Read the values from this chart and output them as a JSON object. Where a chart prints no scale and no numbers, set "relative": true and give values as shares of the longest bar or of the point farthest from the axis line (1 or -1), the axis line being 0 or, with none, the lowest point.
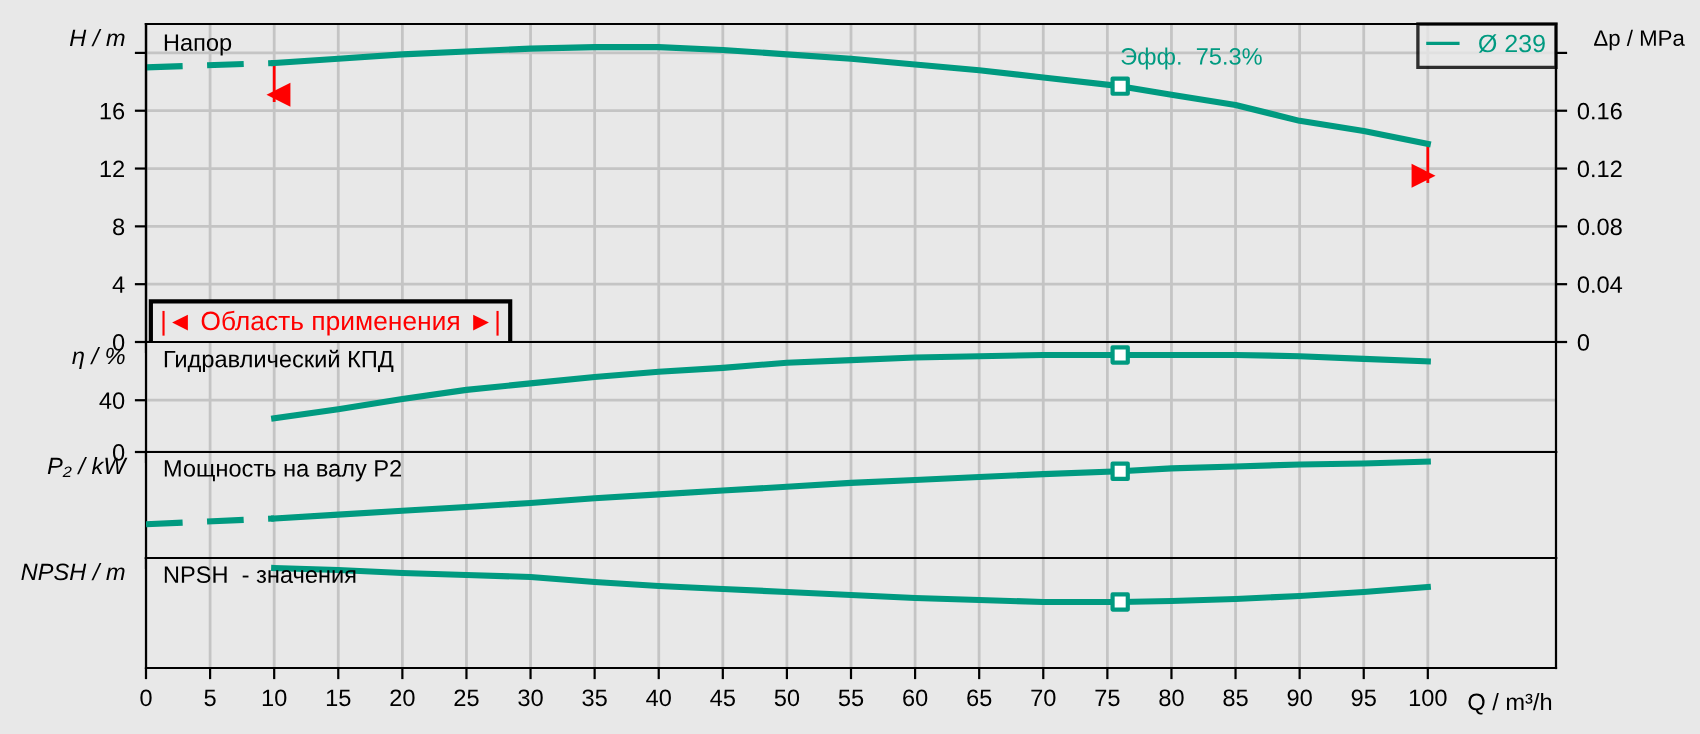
{
  "chart_data": [
    {
      "type": "line",
      "title": "Напор",
      "ylabel": "H / m",
      "y2label": "Δp / MPa",
      "xlim": [
        0,
        110
      ],
      "xticks": [
        0,
        5,
        10,
        15,
        20,
        25,
        30,
        35,
        40,
        45,
        50,
        55,
        60,
        65,
        70,
        75,
        80,
        85,
        90,
        95,
        100
      ],
      "ylim": [
        0,
        22
      ],
      "yticks": [
        0,
        4,
        8,
        12,
        16,
        {
          "value": 20,
          "label": null
        }
      ],
      "y2lim": [
        0,
        0.22
      ],
      "y2ticks": [
        0,
        0.04,
        0.08,
        0.12,
        0.16,
        {
          "value": 0.2,
          "label": null
        }
      ],
      "tick_labels": "y",
      "grid": true,
      "legend": "top right",
      "series": [
        {
          "name": "Ø 239",
          "color": "#009a80",
          "x": [
            10,
            15,
            20,
            25,
            30,
            35,
            40,
            45,
            50,
            55,
            60,
            65,
            70,
            76,
            80,
            85,
            90,
            95,
            100
          ],
          "values": [
            19.3,
            19.6,
            19.9,
            20.1,
            20.3,
            20.4,
            20.4,
            20.2,
            19.9,
            19.6,
            19.2,
            18.8,
            18.3,
            17.7,
            17.1,
            16.4,
            15.3,
            14.6,
            13.7
          ]
        },
        {
          "color": "#009a80",
          "line_style": "dashed",
          "x": [
            0,
            10
          ],
          "values": [
            19.0,
            19.3
          ]
        },
        {
          "type": "scatter",
          "marker": "square",
          "color": "#009a80",
          "x": [
            76
          ],
          "values": [
            17.7
          ]
        }
      ],
      "annotations": [
        {
          "text": "Эфф.  75.3%",
          "x": 76,
          "y": 17.7
        },
        "|◄ Область применения ►|"
      ]
    },
    {
      "type": "line",
      "title": "Гидравлический КПД",
      "ylabel": "η / %",
      "xlim": [
        0,
        110
      ],
      "xticks": [
        0,
        5,
        10,
        15,
        20,
        25,
        30,
        35,
        40,
        45,
        50,
        55,
        60,
        65,
        70,
        75,
        80,
        85,
        90,
        95,
        100
      ],
      "ylim": [
        0,
        85
      ],
      "yticks": [
        0,
        40
      ],
      "tick_labels": "y",
      "grid": true,
      "series": [
        {
          "color": "#009a80",
          "x": [
            10,
            15,
            20,
            25,
            30,
            35,
            40,
            45,
            50,
            55,
            60,
            65,
            70,
            76,
            80,
            85,
            90,
            95,
            100
          ],
          "values": [
            26,
            33,
            41,
            48,
            53,
            58,
            62,
            65,
            69,
            71,
            73,
            74,
            75,
            75,
            75,
            75,
            74,
            72,
            70
          ]
        },
        {
          "type": "scatter",
          "marker": "square",
          "color": "#009a80",
          "x": [
            76
          ],
          "values": [
            75
          ]
        }
      ]
    },
    {
      "type": "line",
      "title": "Мощность на валу P2",
      "ylabel": "P₂ / kW",
      "relative": true,
      "xlim": [
        0,
        110
      ],
      "xticks": [
        0,
        5,
        10,
        15,
        20,
        25,
        30,
        35,
        40,
        45,
        50,
        55,
        60,
        65,
        70,
        75,
        80,
        85,
        90,
        95,
        100
      ],
      "tick_labels": false,
      "grid": true,
      "series": [
        {
          "color": "#009a80",
          "x": [
            10,
            15,
            20,
            25,
            30,
            35,
            40,
            45,
            50,
            55,
            60,
            65,
            70,
            76,
            80,
            85,
            90,
            95,
            100
          ],
          "values": [
            0.41,
            0.45,
            0.49,
            0.53,
            0.57,
            0.62,
            0.66,
            0.7,
            0.74,
            0.78,
            0.81,
            0.84,
            0.87,
            0.9,
            0.93,
            0.95,
            0.97,
            0.98,
            1
          ]
        },
        {
          "color": "#009a80",
          "line_style": "dashed",
          "x": [
            0,
            10
          ],
          "values": [
            0.35,
            0.41
          ]
        },
        {
          "type": "scatter",
          "marker": "square",
          "color": "#009a80",
          "x": [
            76
          ],
          "values": [
            0.9
          ]
        }
      ]
    },
    {
      "type": "line",
      "title": "NPSH  - значения",
      "ylabel": "NPSH / m",
      "xlabel": "Q / m³/h",
      "relative": true,
      "xlim": [
        0,
        110
      ],
      "xticks": [
        0,
        5,
        10,
        15,
        20,
        25,
        30,
        35,
        40,
        45,
        50,
        55,
        60,
        65,
        70,
        75,
        80,
        85,
        90,
        95,
        100
      ],
      "tick_labels": "x",
      "grid": true,
      "series": [
        {
          "color": "#009a80",
          "x": [
            10,
            15,
            20,
            25,
            30,
            35,
            40,
            45,
            50,
            55,
            60,
            65,
            70,
            76,
            80,
            85,
            90,
            95,
            100
          ],
          "values": [
            1,
            0.98,
            0.95,
            0.93,
            0.91,
            0.86,
            0.82,
            0.79,
            0.76,
            0.73,
            0.7,
            0.68,
            0.66,
            0.66,
            0.67,
            0.69,
            0.72,
            0.76,
            0.81
          ]
        },
        {
          "type": "scatter",
          "marker": "square",
          "color": "#009a80",
          "x": [
            76
          ],
          "values": [
            0.66
          ]
        }
      ]
    }
  ]
}
